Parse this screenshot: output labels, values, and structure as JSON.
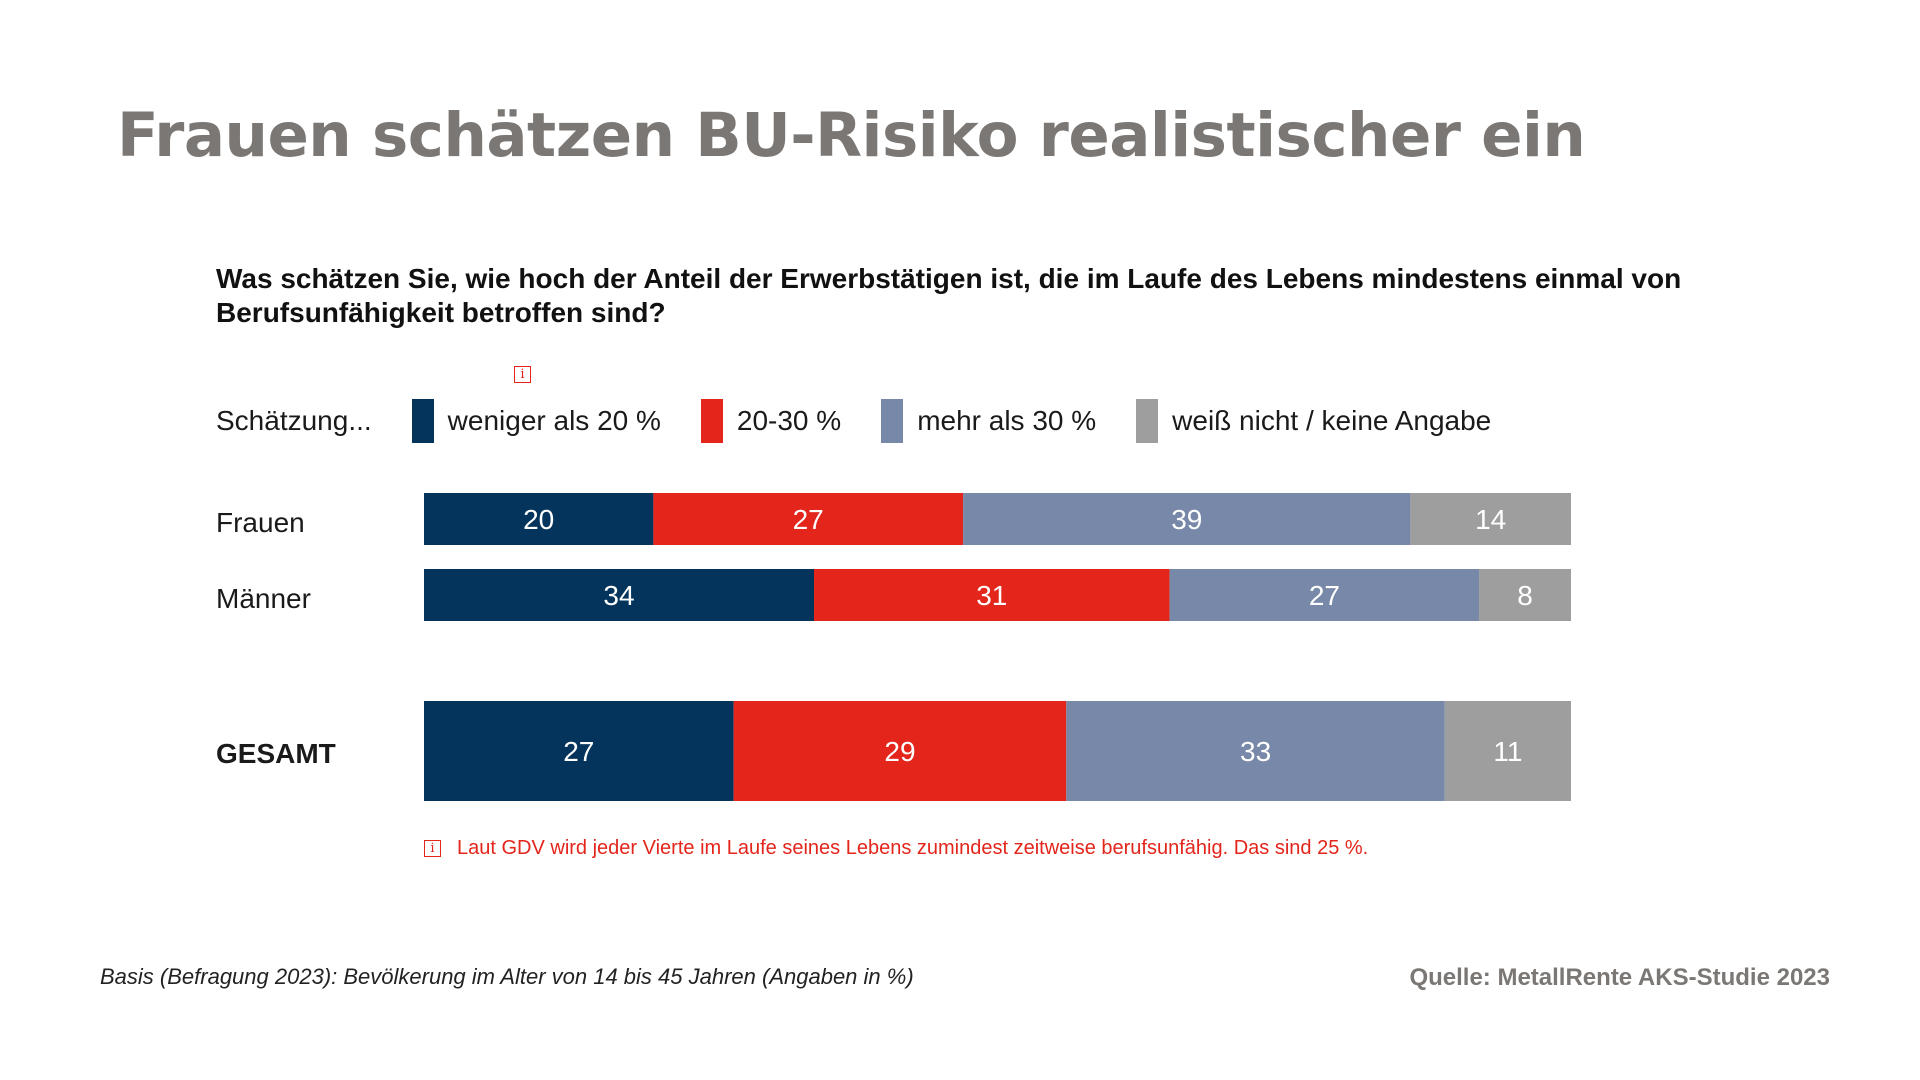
{
  "title": "Frauen schätzen BU-Risiko realistischer ein",
  "question": "Was schätzen Sie, wie hoch der Anteil der Erwerbstätigen ist, die im Laufe des Lebens mindestens einmal von Berufsunfähigkeit betroffen sind?",
  "legend_title": "Schätzung...",
  "info_glyph": "i",
  "note": "Laut GDV wird jeder Vierte im Laufe seines Lebens zumindest zeitweise berufsunfähig. Das sind 25 %.",
  "footer": {
    "basis": "Basis (Befragung 2023): Bevölkerung im Alter von 14 bis 45 Jahren (Angaben in %)",
    "source": "Quelle: MetallRente AKS-Studie 2023"
  },
  "colors": {
    "dark_blue": "#04345c",
    "red": "#e3251b",
    "slate": "#7888a8",
    "gray": "#9e9e9e"
  },
  "chart_data": {
    "type": "bar",
    "orientation": "horizontal",
    "stacked": true,
    "categories": [
      "Frauen",
      "Männer",
      "GESAMT"
    ],
    "xlim": [
      0,
      100
    ],
    "grid": false,
    "legend_position": "top",
    "series": [
      {
        "name": "weniger als 20 %",
        "color": "#04345c",
        "values": [
          20,
          34,
          27
        ]
      },
      {
        "name": "20-30 %",
        "color": "#e3251b",
        "values": [
          27,
          31,
          29
        ]
      },
      {
        "name": "mehr als 30 %",
        "color": "#7888a8",
        "values": [
          39,
          27,
          33
        ]
      },
      {
        "name": "weiß nicht / keine Angabe",
        "color": "#9e9e9e",
        "values": [
          14,
          8,
          11
        ]
      }
    ]
  }
}
